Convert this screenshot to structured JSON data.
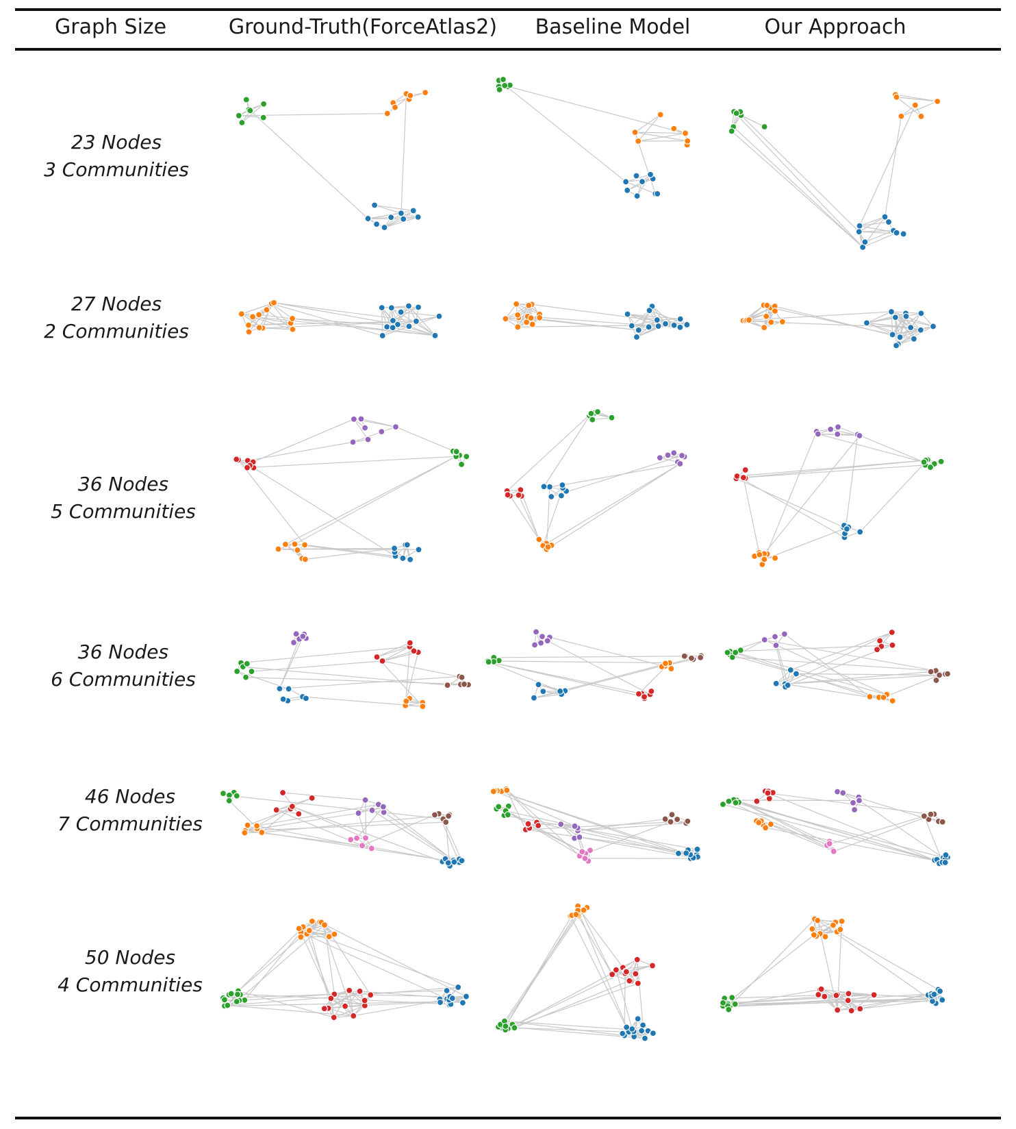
{
  "headers": {
    "graph_size": "Graph Size",
    "ground_truth": "Ground-Truth(ForceAtlas2)",
    "baseline": "Baseline Model",
    "ours": "Our Approach"
  },
  "colors": {
    "blue": "#1f77b4",
    "orange": "#ff7f0e",
    "green": "#2ca02c",
    "red": "#d62728",
    "purple": "#9467bd",
    "brown": "#8c564b",
    "pink": "#e377c2",
    "edge": "#c8c8c8"
  },
  "rows": [
    {
      "nodes": "23 Nodes",
      "communities": "3 Communities",
      "n": 23,
      "k": 3
    },
    {
      "nodes": "27 Nodes",
      "communities": "2 Communities",
      "n": 27,
      "k": 2
    },
    {
      "nodes": "36 Nodes",
      "communities": "5 Communities",
      "n": 36,
      "k": 5
    },
    {
      "nodes": "36 Nodes",
      "communities": "6 Communities",
      "n": 36,
      "k": 6
    },
    {
      "nodes": "46 Nodes",
      "communities": "7 Communities",
      "n": 46,
      "k": 7
    },
    {
      "nodes": "50 Nodes",
      "communities": "4 Communities",
      "n": 50,
      "k": 4
    }
  ]
}
